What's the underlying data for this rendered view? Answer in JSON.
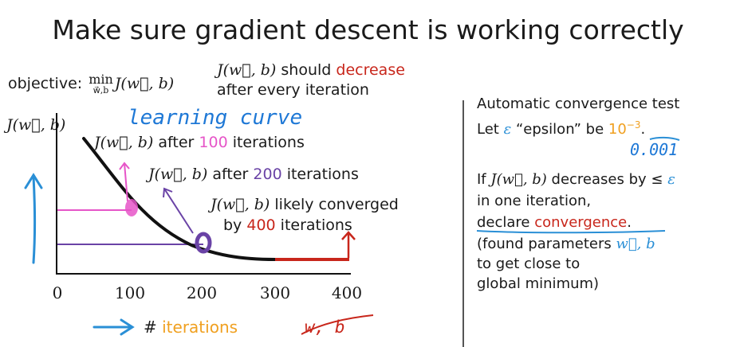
{
  "title": "Make sure gradient descent is working correctly",
  "objective": {
    "prefix": "objective:",
    "min": "min",
    "min_sub": "w⃗,b",
    "func": "J(w⃗, b)"
  },
  "note": {
    "func": "J(w⃗, b)",
    "should": " should ",
    "decrease": "decrease",
    "line2": "after every iteration"
  },
  "handwriting": {
    "learning_curve": "learning curve",
    "epsilon_value": "0.001",
    "struck_text": "w, b"
  },
  "plot": {
    "y_label": "J(w⃗, b)",
    "x_ticks": [
      "0",
      "100",
      "200",
      "300",
      "400"
    ],
    "x_label_symbol": "# ",
    "x_label_word": "iterations",
    "annotations": [
      {
        "func": "J(w⃗, b)",
        "text_before": " after ",
        "number": "100",
        "text_after": " iterations"
      },
      {
        "func": "J(w⃗, b)",
        "text_before": " after ",
        "number": "200",
        "text_after": " iterations"
      },
      {
        "func": "J(w⃗, b)",
        "line1": " likely converged",
        "line2_before": "by ",
        "number": "400",
        "line2_after": " iterations"
      }
    ]
  },
  "convergence_test": {
    "heading": "Automatic convergence test",
    "let_prefix": "Let ",
    "eps": "ε",
    "let_mid": " “epsilon” be ",
    "value_base": "10",
    "value_exp": "−3",
    "let_suffix": ".",
    "if_prefix": "If ",
    "if_func": "J(w⃗, b)",
    "if_mid": " decreases by ≤ ",
    "if_eps": "ε",
    "line3": "in one iteration,",
    "declare_prefix": "declare ",
    "declare_word": "convergence",
    "declare_suffix": ".",
    "found1_prefix": "(found parameters ",
    "found1_vars": "w⃗, b",
    "found2": "to get close to",
    "found3": "global minimum)"
  },
  "colors": {
    "blue": "#2a8fd6",
    "pink": "#e655c8",
    "purple": "#6a43a6",
    "red": "#c8261b",
    "orange": "#f0a020"
  }
}
